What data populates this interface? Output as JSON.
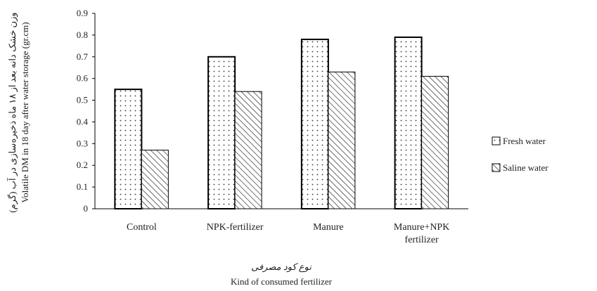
{
  "chart_data": {
    "type": "bar",
    "categories": [
      "Control",
      "NPK-fertilizer",
      "Manure",
      "Manure+NPK fertilizer"
    ],
    "series": [
      {
        "name": "Fresh water",
        "values": [
          0.55,
          0.7,
          0.78,
          0.79
        ]
      },
      {
        "name": "Saline water",
        "values": [
          0.27,
          0.54,
          0.63,
          0.61
        ]
      }
    ],
    "ylim": [
      0,
      0.9
    ],
    "yticks": [
      "0",
      "0.1",
      "0.2",
      "0.3",
      "0.4",
      "0.5",
      "0.6",
      "0.7",
      "0.8",
      "0.9"
    ],
    "ylabel_fa": "وزن خشک دانه بعد از ۱۸ ماه ذخیره‌سازی در آب (گرم)",
    "ylabel": "Volatile DM in 18 day after water storage (gr.cm)",
    "xlabel_fa": "نوع کود مصرفی",
    "xlabel": "Kind of consumed fertilizer",
    "legend_position": "right",
    "grid": false,
    "colors": {
      "fresh_fill": "#ffffff",
      "saline_fill": "#ffffff",
      "stroke": "#000000",
      "pattern": "#333333"
    }
  }
}
